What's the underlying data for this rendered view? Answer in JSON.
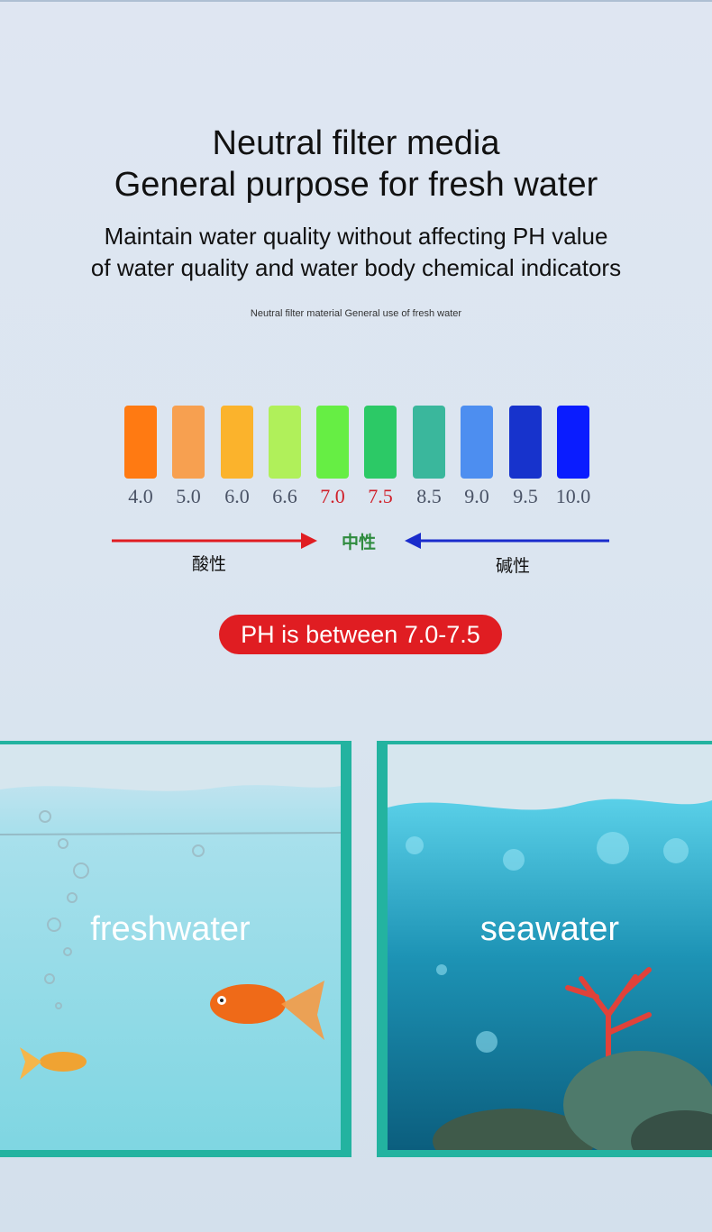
{
  "heading": {
    "line1": "Neutral filter media",
    "line2": "General purpose for fresh water"
  },
  "subheading": {
    "line1": "Maintain water quality without affecting PH value",
    "line2": "of water quality and water body chemical indicators"
  },
  "caption": "Neutral filter material General use of fresh water",
  "ph_scale": {
    "colors": [
      "#ff7a12",
      "#f7a050",
      "#fbb32c",
      "#b0f05a",
      "#66ee44",
      "#2cc966",
      "#3ab79c",
      "#4d8ef0",
      "#1733cc",
      "#0a1cff"
    ],
    "labels": [
      "4.0",
      "5.0",
      "6.0",
      "6.6",
      "7.0",
      "7.5",
      "8.5",
      "9.0",
      "9.5",
      "10.0"
    ],
    "highlight_color": "#d0202a",
    "label_color": "#4a5366"
  },
  "arrows": {
    "acid_label": "酸性",
    "neutral_label": "中性",
    "alkaline_label": "碱性",
    "acid_color": "#e01d22",
    "alkaline_color": "#1a2ccc"
  },
  "ph_badge": "PH is between 7.0-7.5",
  "panels": {
    "left_label": "freshwater",
    "right_label": "seawater",
    "border_color": "#23b3a0"
  }
}
